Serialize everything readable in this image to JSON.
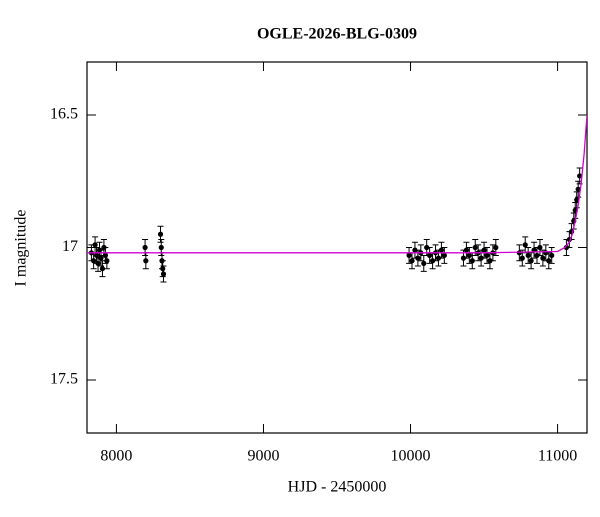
{
  "chart_data": {
    "type": "scatter",
    "title": "OGLE-2026-BLG-0309",
    "x_label": "HJD - 2450000",
    "y_label": "I magnitude",
    "xlim": [
      7800,
      11200
    ],
    "ylim": [
      17.7,
      16.3
    ],
    "xticks": [
      8000,
      9000,
      10000,
      11000
    ],
    "yticks": [
      16.5,
      17,
      17.5
    ],
    "series": [
      {
        "type": "scatter",
        "color": "#000000",
        "x": [
          7830,
          7845,
          7855,
          7865,
          7875,
          7885,
          7895,
          7905,
          7915,
          7925,
          7935,
          8195,
          8200,
          8300,
          8305,
          8310,
          8315,
          8320,
          9990,
          10010,
          10030,
          10050,
          10070,
          10090,
          10110,
          10130,
          10150,
          10170,
          10190,
          10210,
          10230,
          10360,
          10380,
          10400,
          10420,
          10440,
          10460,
          10480,
          10500,
          10520,
          10540,
          10560,
          10580,
          10740,
          10760,
          10780,
          10800,
          10820,
          10840,
          10860,
          10880,
          10900,
          10920,
          10940,
          10960,
          11060,
          11080,
          11095,
          11110,
          11120,
          11130,
          11140,
          11150
        ],
        "values": [
          17.02,
          17.05,
          16.99,
          17.03,
          17.06,
          17.01,
          17.04,
          17.08,
          17.0,
          17.03,
          17.05,
          17.0,
          17.05,
          16.95,
          17.0,
          17.05,
          17.08,
          17.1,
          17.03,
          17.05,
          17.01,
          17.04,
          17.02,
          17.06,
          17.0,
          17.03,
          17.05,
          17.02,
          17.04,
          17.01,
          17.03,
          17.04,
          17.01,
          17.03,
          17.05,
          17.0,
          17.02,
          17.04,
          17.01,
          17.03,
          17.05,
          17.02,
          17.0,
          17.02,
          17.04,
          16.99,
          17.03,
          17.05,
          17.01,
          17.03,
          17.0,
          17.04,
          17.02,
          17.05,
          17.03,
          17.0,
          16.97,
          16.94,
          16.9,
          16.86,
          16.82,
          16.78,
          16.73
        ],
        "errors": [
          0.03,
          0.03,
          0.03,
          0.03,
          0.03,
          0.03,
          0.03,
          0.03,
          0.03,
          0.03,
          0.03,
          0.03,
          0.03,
          0.03,
          0.03,
          0.03,
          0.03,
          0.03,
          0.03,
          0.03,
          0.03,
          0.03,
          0.03,
          0.03,
          0.03,
          0.03,
          0.03,
          0.03,
          0.03,
          0.03,
          0.03,
          0.03,
          0.03,
          0.03,
          0.03,
          0.03,
          0.03,
          0.03,
          0.03,
          0.03,
          0.03,
          0.03,
          0.03,
          0.03,
          0.03,
          0.03,
          0.03,
          0.03,
          0.03,
          0.03,
          0.03,
          0.03,
          0.03,
          0.03,
          0.03,
          0.03,
          0.03,
          0.03,
          0.03,
          0.03,
          0.03,
          0.03,
          0.03
        ]
      },
      {
        "type": "line",
        "color": "#d400d4",
        "x": [
          7800,
          8500,
          9500,
          10500,
          11000,
          11050,
          11080,
          11100,
          11120,
          11140,
          11160,
          11180,
          11200
        ],
        "values": [
          17.02,
          17.02,
          17.02,
          17.02,
          17.015,
          17.0,
          16.98,
          16.95,
          16.9,
          16.84,
          16.76,
          16.65,
          16.5
        ]
      }
    ]
  }
}
